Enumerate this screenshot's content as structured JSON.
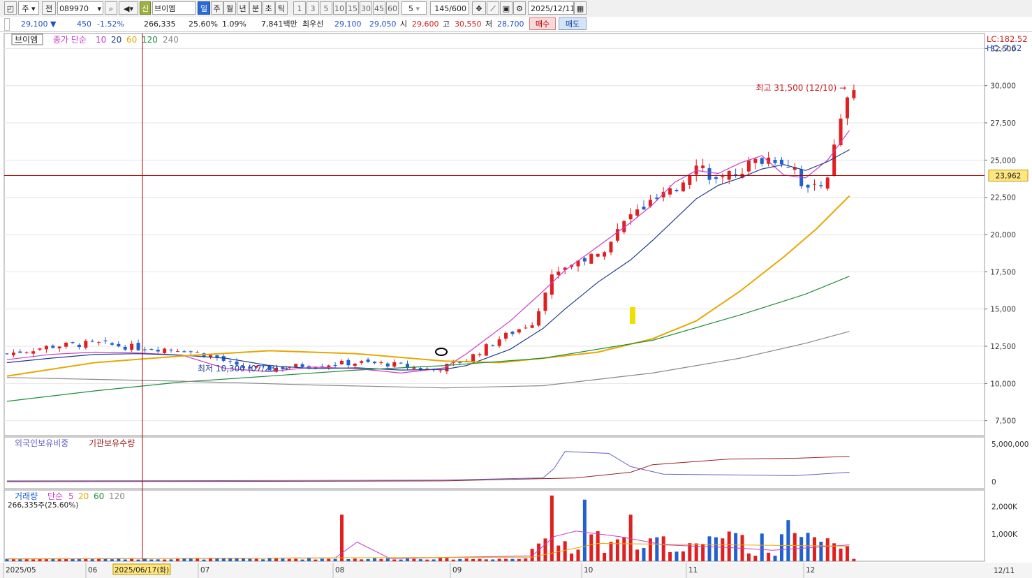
{
  "toolbar": {
    "market": "주",
    "scope": "전",
    "code": "089970",
    "name": "브이엠",
    "periods": [
      "일",
      "주",
      "월",
      "년",
      "분",
      "초",
      "틱"
    ],
    "active_period": "일",
    "minutes": [
      "1",
      "3",
      "5",
      "10",
      "15",
      "30",
      "45",
      "60"
    ],
    "interval": "5",
    "count": "145/600",
    "date": "2025/12/11",
    "new_badge": "신"
  },
  "quote": {
    "price": "29,100",
    "arrow": "▼",
    "change": "450",
    "change_pct": "-1.52%",
    "volume": "266,335",
    "vol_ratio": "25.60%",
    "turnover": "1.09%",
    "amount": "7,841백만",
    "best_label": "최우선",
    "ask": "29,100",
    "bid": "29,050",
    "open_label": "시",
    "open": "29,600",
    "high_label": "고",
    "high": "30,550",
    "low_label": "저",
    "low": "28,700",
    "buy": "매수",
    "sell": "매도"
  },
  "main_legend": {
    "name": "브이엠",
    "ma_label": "종가 단순",
    "ma_periods": [
      "10",
      "20",
      "60",
      "120",
      "240"
    ],
    "ma_colors": [
      "#c83cc8",
      "#1e3c8c",
      "#e6a800",
      "#1e8c3c",
      "#888888"
    ]
  },
  "scale_info": {
    "lc": "LC:182.52",
    "hc": "HC:-7.62"
  },
  "annotations": {
    "high_text": "최고 31,500 (12/10) →",
    "low_text": "최저 10,300 (07/23) →",
    "crosshair_price": "23,962",
    "crosshair_date": "2025/06/17(화)"
  },
  "foreign_legend": {
    "foreign": "외국인보유비중",
    "inst": "기관보유수량"
  },
  "volume_legend": {
    "label": "거래량",
    "ma_label": "단순",
    "ma_periods": [
      "5",
      "20",
      "60",
      "120"
    ],
    "current": "266,335주(25.60%)"
  },
  "x_axis": {
    "labels": [
      "2025/05",
      "06",
      "07",
      "08",
      "09",
      "10",
      "11",
      "12"
    ],
    "last": "12/11"
  },
  "y_axis_main": [
    "32,500",
    "30,000",
    "27,500",
    "25,000",
    "22,500",
    "20,000",
    "17,500",
    "15,000",
    "12,500",
    "10,000",
    "7,500"
  ],
  "y_axis_foreign": [
    "5,000,000",
    "0"
  ],
  "y_axis_volume": [
    "2,000K",
    "1,000K"
  ],
  "colors": {
    "up": "#e02020",
    "down": "#2060d0",
    "crosshair": "#b40000",
    "grid": "#e6e6e6"
  },
  "chart_data": {
    "type": "candlestick",
    "title": "브이엠",
    "price_ylim": [
      6500,
      33500
    ],
    "volume_ylim": [
      0,
      2600000
    ],
    "x_range": [
      "2025/05",
      "2025/12/11"
    ],
    "crosshair": {
      "date": "2025/06/17",
      "price": 23962
    },
    "extremes": {
      "high": {
        "value": 31500,
        "date": "12/10"
      },
      "low": {
        "value": 10300,
        "date": "07/23"
      }
    },
    "ma": [
      {
        "period": 10,
        "color": "#c83cc8",
        "values": [
          [
            0,
            11600
          ],
          [
            20,
            11950
          ],
          [
            40,
            12100
          ],
          [
            60,
            12050
          ],
          [
            80,
            11900
          ],
          [
            100,
            11000
          ],
          [
            120,
            10800
          ],
          [
            140,
            11100
          ],
          [
            160,
            11000
          ],
          [
            180,
            10700
          ],
          [
            200,
            11050
          ],
          [
            210,
            12000
          ],
          [
            230,
            14200
          ],
          [
            245,
            16200
          ],
          [
            255,
            17600
          ],
          [
            270,
            19200
          ],
          [
            285,
            20800
          ],
          [
            295,
            22000
          ],
          [
            305,
            23500
          ],
          [
            315,
            24300
          ],
          [
            325,
            24100
          ],
          [
            335,
            24800
          ],
          [
            345,
            25300
          ],
          [
            355,
            24000
          ],
          [
            365,
            23800
          ],
          [
            375,
            25000
          ],
          [
            385,
            27000
          ]
        ]
      },
      {
        "period": 20,
        "color": "#1e3c8c",
        "values": [
          [
            0,
            11400
          ],
          [
            20,
            11700
          ],
          [
            40,
            11950
          ],
          [
            60,
            12000
          ],
          [
            80,
            11900
          ],
          [
            100,
            11700
          ],
          [
            120,
            11200
          ],
          [
            140,
            11000
          ],
          [
            160,
            11050
          ],
          [
            180,
            10900
          ],
          [
            200,
            10950
          ],
          [
            210,
            11200
          ],
          [
            230,
            12300
          ],
          [
            245,
            13700
          ],
          [
            255,
            15000
          ],
          [
            270,
            16800
          ],
          [
            285,
            18300
          ],
          [
            295,
            19600
          ],
          [
            305,
            21000
          ],
          [
            315,
            22400
          ],
          [
            325,
            23300
          ],
          [
            335,
            23800
          ],
          [
            345,
            24400
          ],
          [
            355,
            24700
          ],
          [
            365,
            24300
          ],
          [
            375,
            24900
          ],
          [
            385,
            25700
          ]
        ]
      },
      {
        "period": 60,
        "color": "#e6a800",
        "values": [
          [
            0,
            10500
          ],
          [
            40,
            11400
          ],
          [
            80,
            11850
          ],
          [
            120,
            12200
          ],
          [
            160,
            12000
          ],
          [
            200,
            11500
          ],
          [
            225,
            11400
          ],
          [
            245,
            11700
          ],
          [
            270,
            12100
          ],
          [
            295,
            13000
          ],
          [
            315,
            14200
          ],
          [
            335,
            16200
          ],
          [
            355,
            18500
          ],
          [
            370,
            20400
          ],
          [
            385,
            22600
          ]
        ]
      },
      {
        "period": 120,
        "color": "#1e8c3c",
        "values": [
          [
            0,
            8800
          ],
          [
            40,
            9500
          ],
          [
            80,
            10100
          ],
          [
            120,
            10500
          ],
          [
            160,
            10900
          ],
          [
            200,
            11200
          ],
          [
            245,
            11700
          ],
          [
            295,
            12900
          ],
          [
            335,
            14600
          ],
          [
            365,
            16000
          ],
          [
            385,
            17200
          ]
        ]
      },
      {
        "period": 240,
        "color": "#888888",
        "values": [
          [
            0,
            10400
          ],
          [
            80,
            10150
          ],
          [
            140,
            9900
          ],
          [
            200,
            9700
          ],
          [
            245,
            9850
          ],
          [
            295,
            10700
          ],
          [
            335,
            11700
          ],
          [
            365,
            12700
          ],
          [
            385,
            13500
          ]
        ]
      }
    ]
  }
}
